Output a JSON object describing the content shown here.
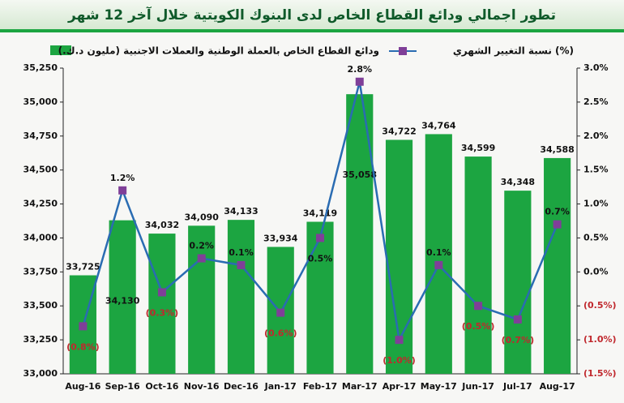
{
  "chart_data": {
    "type": "bar",
    "title": "تطور اجمالي ودائع القطاع الخاص لدى البنوك الكويتية خلال آخر 12 شهر",
    "categories": [
      "Aug-16",
      "Sep-16",
      "Oct-16",
      "Nov-16",
      "Dec-16",
      "Jan-17",
      "Feb-17",
      "Mar-17",
      "Apr-17",
      "May-17",
      "Jun-17",
      "Jul-17",
      "Aug-17"
    ],
    "series": [
      {
        "name": "ودائع القطاع الخاص بالعملة الوطنية والعملات الاجنبية (مليون د.ك.)",
        "color": "#1ca541",
        "values": [
          33725,
          34130,
          34032,
          34090,
          34133,
          33934,
          34119,
          35058,
          34722,
          34764,
          34599,
          34348,
          34588
        ],
        "value_labels": [
          "33,725",
          "34,130",
          "34,032",
          "34,090",
          "34,133",
          "33,934",
          "34,119",
          "35,058",
          "34,722",
          "34,764",
          "34,599",
          "34,348",
          "34,588"
        ]
      },
      {
        "name": "نسبة التغيير الشهري (%)",
        "type": "line",
        "axis": "y2",
        "color": "#2a6cb2",
        "marker_color": "#7f3f98",
        "values": [
          -0.8,
          1.2,
          -0.3,
          0.2,
          0.1,
          -0.6,
          0.5,
          2.8,
          -1.0,
          0.1,
          -0.5,
          -0.7,
          0.7
        ],
        "value_labels": [
          "(0.8%)",
          "1.2%",
          "(0.3%)",
          "0.2%",
          "0.1%",
          "(0.6%)",
          "0.5%",
          "2.8%",
          "(1.0%)",
          "0.1%",
          "(0.5%)",
          "(0.7%)",
          "0.7%"
        ]
      }
    ],
    "ylim": [
      33000,
      35250
    ],
    "yticks": [
      {
        "value": 33000,
        "label": "33,000"
      },
      {
        "value": 33250,
        "label": "33,250"
      },
      {
        "value": 33500,
        "label": "33,500"
      },
      {
        "value": 33750,
        "label": "33,750"
      },
      {
        "value": 34000,
        "label": "34,000"
      },
      {
        "value": 34250,
        "label": "34,250"
      },
      {
        "value": 34500,
        "label": "34,500"
      },
      {
        "value": 34750,
        "label": "34,750"
      },
      {
        "value": 35000,
        "label": "35,000"
      },
      {
        "value": 35250,
        "label": "35,250"
      }
    ],
    "y2lim": [
      -1.5,
      3.0
    ],
    "y2ticks": [
      {
        "value": -1.5,
        "label": "(1.5%)"
      },
      {
        "value": -1.0,
        "label": "(1.0%)"
      },
      {
        "value": -0.5,
        "label": "(0.5%)"
      },
      {
        "value": 0,
        "label": "0.0%"
      },
      {
        "value": 0.5,
        "label": "0.5%"
      },
      {
        "value": 1.0,
        "label": "1.0%"
      },
      {
        "value": 1.5,
        "label": "1.5%"
      },
      {
        "value": 2.0,
        "label": "2.0%"
      },
      {
        "value": 2.5,
        "label": "2.5%"
      },
      {
        "value": 3.0,
        "label": "3.0%"
      }
    ],
    "negative_color": "#c0282d",
    "legend": "top"
  }
}
